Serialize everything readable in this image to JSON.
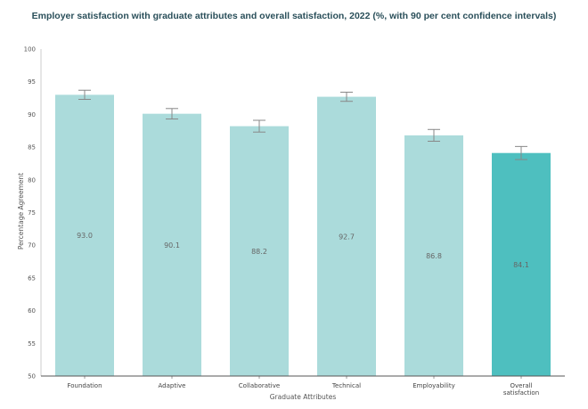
{
  "chart_data": {
    "type": "bar",
    "title": "Employer satisfaction with graduate attributes and overall satisfaction, 2022 (%, with 90 per cent confidence intervals)",
    "xlabel": "Graduate Attributes",
    "ylabel": "Percentage Agreement",
    "ylim": [
      50,
      100
    ],
    "yticks": [
      50,
      55,
      60,
      65,
      70,
      75,
      80,
      85,
      90,
      95,
      100
    ],
    "grid": false,
    "categories": [
      "Foundation",
      "Adaptive",
      "Collaborative",
      "Technical",
      "Employability",
      "Overall satisfaction"
    ],
    "category_lines": [
      [
        "Foundation"
      ],
      [
        "Adaptive"
      ],
      [
        "Collaborative"
      ],
      [
        "Technical"
      ],
      [
        "Employability"
      ],
      [
        "Overall",
        "satisfaction"
      ]
    ],
    "values": [
      93.0,
      90.1,
      88.2,
      92.7,
      86.8,
      84.1
    ],
    "value_labels": [
      "93.0",
      "90.1",
      "88.2",
      "92.7",
      "86.8",
      "84.1"
    ],
    "ci_lower": [
      92.3,
      89.3,
      87.3,
      92.0,
      85.9,
      83.1
    ],
    "ci_upper": [
      93.7,
      90.9,
      89.1,
      93.4,
      87.7,
      85.1
    ],
    "colors": [
      "#abdbdb",
      "#abdbdb",
      "#abdbdb",
      "#abdbdb",
      "#abdbdb",
      "#4ebfbf"
    ]
  }
}
